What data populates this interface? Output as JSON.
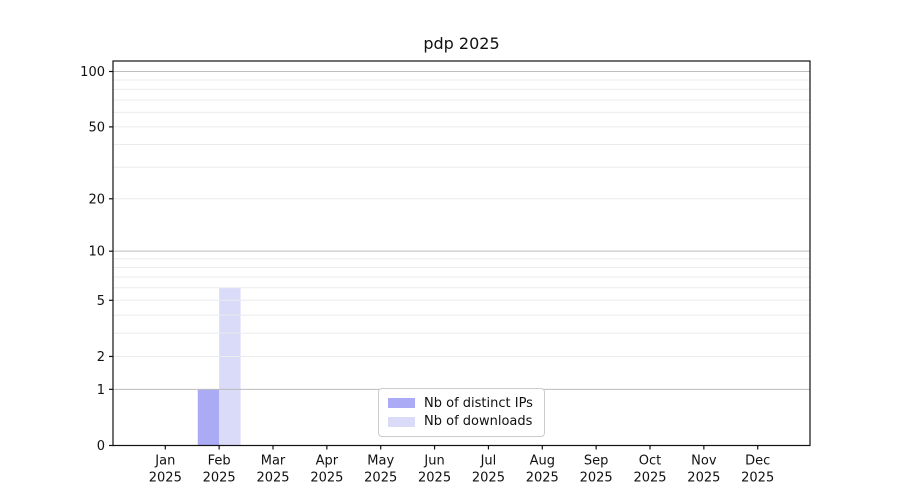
{
  "chart_data": {
    "type": "bar",
    "title": "pdp 2025",
    "categories": [
      "Jan",
      "Feb",
      "Mar",
      "Apr",
      "May",
      "Jun",
      "Jul",
      "Aug",
      "Sep",
      "Oct",
      "Nov",
      "Dec"
    ],
    "category_year_label": "2025",
    "series": [
      {
        "name": "Nb of distinct IPs",
        "color": "#aaaaf5",
        "values": [
          0,
          1,
          0,
          0,
          0,
          0,
          0,
          0,
          0,
          0,
          0,
          0
        ]
      },
      {
        "name": "Nb of downloads",
        "color": "#dadaf9",
        "values": [
          0,
          6,
          0,
          0,
          0,
          0,
          0,
          0,
          0,
          0,
          0,
          0
        ]
      }
    ],
    "yscale": "log1p",
    "ylim": [
      0,
      114
    ],
    "y_ticks": [
      0,
      1,
      2,
      5,
      10,
      20,
      50,
      100
    ],
    "y_major_gridlines": [
      1,
      10,
      100
    ],
    "y_minor_gridlines": [
      2,
      3,
      4,
      5,
      6,
      7,
      8,
      9,
      20,
      30,
      40,
      50,
      60,
      70,
      80,
      90
    ],
    "grid": true,
    "legend_position": "lower center"
  },
  "colors": {
    "background": "#ffffff",
    "major_grid": "#bdbdbd",
    "minor_grid": "#ebebeb",
    "spine": "#111111",
    "tick_text": "#111111",
    "legend_border": "#cccccc"
  }
}
